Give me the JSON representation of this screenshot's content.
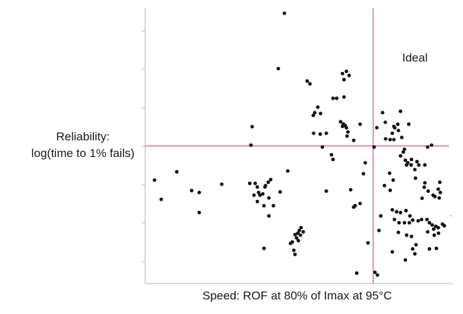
{
  "chart_data": {
    "type": "scatter",
    "title": "",
    "xlabel": "Speed: ROF at 80% of Imax at 95°C",
    "ylabel_lines": [
      "Reliability:",
      "log(time to 1% fails)"
    ],
    "annotation": "Ideal",
    "xlim": [
      0,
      100
    ],
    "ylim": [
      0,
      100
    ],
    "reference_lines": {
      "x": 75,
      "y": 50
    },
    "reference_line_color": "#e0506e",
    "point_color": "#111111",
    "grid": false,
    "points": [
      {
        "x": 45.8,
        "y": 98.2
      },
      {
        "x": 43.8,
        "y": 78.1
      },
      {
        "x": 53.3,
        "y": 73.6
      },
      {
        "x": 54.2,
        "y": 72.6
      },
      {
        "x": 66.2,
        "y": 77.1
      },
      {
        "x": 65.4,
        "y": 74.1
      },
      {
        "x": 64.9,
        "y": 76.3
      },
      {
        "x": 67.1,
        "y": 75.6
      },
      {
        "x": 61.8,
        "y": 67.3
      },
      {
        "x": 63.0,
        "y": 67.3
      },
      {
        "x": 65.4,
        "y": 67.8
      },
      {
        "x": 56.8,
        "y": 64.1
      },
      {
        "x": 57.7,
        "y": 61.8
      },
      {
        "x": 55.3,
        "y": 61.1
      },
      {
        "x": 55.8,
        "y": 62.1
      },
      {
        "x": 64.3,
        "y": 58.8
      },
      {
        "x": 65.2,
        "y": 58.0
      },
      {
        "x": 65.8,
        "y": 57.4
      },
      {
        "x": 64.9,
        "y": 57.1
      },
      {
        "x": 66.2,
        "y": 56.6
      },
      {
        "x": 66.7,
        "y": 55.1
      },
      {
        "x": 66.4,
        "y": 53.6
      },
      {
        "x": 70.7,
        "y": 57.9
      },
      {
        "x": 57.6,
        "y": 54.3
      },
      {
        "x": 55.4,
        "y": 54.6
      },
      {
        "x": 59.6,
        "y": 54.6
      },
      {
        "x": 68.6,
        "y": 52.0
      },
      {
        "x": 58.3,
        "y": 49.6
      },
      {
        "x": 61.3,
        "y": 46.8
      },
      {
        "x": 61.8,
        "y": 45.1
      },
      {
        "x": 72.4,
        "y": 43.9
      },
      {
        "x": 71.8,
        "y": 39.9
      },
      {
        "x": 35.2,
        "y": 57.0
      },
      {
        "x": 34.8,
        "y": 50.3
      },
      {
        "x": 75.3,
        "y": 49.6
      },
      {
        "x": 78.1,
        "y": 62.1
      },
      {
        "x": 84.0,
        "y": 62.6
      },
      {
        "x": 79.0,
        "y": 58.6
      },
      {
        "x": 82.1,
        "y": 56.6
      },
      {
        "x": 76.2,
        "y": 56.6
      },
      {
        "x": 83.1,
        "y": 57.9
      },
      {
        "x": 81.8,
        "y": 57.1
      },
      {
        "x": 86.7,
        "y": 57.9
      },
      {
        "x": 83.3,
        "y": 55.6
      },
      {
        "x": 81.3,
        "y": 54.6
      },
      {
        "x": 84.4,
        "y": 53.1
      },
      {
        "x": 79.1,
        "y": 52.6
      },
      {
        "x": 80.6,
        "y": 52.3
      },
      {
        "x": 81.8,
        "y": 52.3
      },
      {
        "x": 85.3,
        "y": 48.8
      },
      {
        "x": 84.9,
        "y": 47.8
      },
      {
        "x": 84.0,
        "y": 46.4
      },
      {
        "x": 85.6,
        "y": 44.8
      },
      {
        "x": 87.6,
        "y": 45.1
      },
      {
        "x": 86.0,
        "y": 43.1
      },
      {
        "x": 86.4,
        "y": 43.9
      },
      {
        "x": 87.5,
        "y": 43.1
      },
      {
        "x": 89.4,
        "y": 44.3
      },
      {
        "x": 90.0,
        "y": 43.1
      },
      {
        "x": 92.0,
        "y": 43.1
      },
      {
        "x": 92.9,
        "y": 49.6
      },
      {
        "x": 94.2,
        "y": 50.3
      },
      {
        "x": 88.7,
        "y": 41.4
      },
      {
        "x": 92.0,
        "y": 36.6
      },
      {
        "x": 91.8,
        "y": 35.0
      },
      {
        "x": 93.1,
        "y": 33.6
      },
      {
        "x": 91.1,
        "y": 31.0
      },
      {
        "x": 94.7,
        "y": 32.1
      },
      {
        "x": 95.3,
        "y": 31.6
      },
      {
        "x": 96.4,
        "y": 34.3
      },
      {
        "x": 96.9,
        "y": 36.8
      },
      {
        "x": 97.1,
        "y": 33.1
      },
      {
        "x": 96.7,
        "y": 31.1
      },
      {
        "x": 88.9,
        "y": 38.3
      },
      {
        "x": 81.3,
        "y": 26.8
      },
      {
        "x": 82.7,
        "y": 26.1
      },
      {
        "x": 84.0,
        "y": 25.8
      },
      {
        "x": 85.8,
        "y": 26.5
      },
      {
        "x": 87.1,
        "y": 24.6
      },
      {
        "x": 82.0,
        "y": 23.3
      },
      {
        "x": 83.5,
        "y": 22.1
      },
      {
        "x": 85.3,
        "y": 22.1
      },
      {
        "x": 86.9,
        "y": 22.1
      },
      {
        "x": 88.0,
        "y": 23.1
      },
      {
        "x": 89.8,
        "y": 22.8
      },
      {
        "x": 90.9,
        "y": 23.3
      },
      {
        "x": 92.7,
        "y": 23.3
      },
      {
        "x": 93.5,
        "y": 22.1
      },
      {
        "x": 94.4,
        "y": 21.3
      },
      {
        "x": 95.6,
        "y": 20.8
      },
      {
        "x": 94.9,
        "y": 19.8
      },
      {
        "x": 96.4,
        "y": 20.3
      },
      {
        "x": 97.8,
        "y": 21.6
      },
      {
        "x": 98.4,
        "y": 21.0
      },
      {
        "x": 96.5,
        "y": 18.3
      },
      {
        "x": 95.1,
        "y": 17.6
      },
      {
        "x": 92.9,
        "y": 18.8
      },
      {
        "x": 83.3,
        "y": 18.6
      },
      {
        "x": 86.0,
        "y": 17.6
      },
      {
        "x": 87.6,
        "y": 17.1
      },
      {
        "x": 89.1,
        "y": 14.1
      },
      {
        "x": 88.0,
        "y": 12.6
      },
      {
        "x": 93.5,
        "y": 12.6
      },
      {
        "x": 95.8,
        "y": 12.8
      },
      {
        "x": 81.3,
        "y": 11.5
      },
      {
        "x": 88.7,
        "y": 10.8
      },
      {
        "x": 85.6,
        "y": 8.6
      },
      {
        "x": 76.9,
        "y": 19.3
      },
      {
        "x": 73.3,
        "y": 14.8
      },
      {
        "x": 75.6,
        "y": 4.1
      },
      {
        "x": 76.4,
        "y": 3.1
      },
      {
        "x": 69.6,
        "y": 3.8
      },
      {
        "x": 77.5,
        "y": 24.6
      },
      {
        "x": 80.4,
        "y": 40.1
      },
      {
        "x": 81.6,
        "y": 37.6
      },
      {
        "x": 78.7,
        "y": 35.6
      },
      {
        "x": 80.6,
        "y": 33.9
      },
      {
        "x": 69.1,
        "y": 28.3
      },
      {
        "x": 70.7,
        "y": 29.1
      },
      {
        "x": 67.6,
        "y": 34.1
      },
      {
        "x": 25.2,
        "y": 36.1
      },
      {
        "x": 34.4,
        "y": 36.4
      },
      {
        "x": 36.2,
        "y": 36.4
      },
      {
        "x": 35.8,
        "y": 32.1
      },
      {
        "x": 37.8,
        "y": 32.1
      },
      {
        "x": 36.9,
        "y": 35.1
      },
      {
        "x": 37.3,
        "y": 33.1
      },
      {
        "x": 36.9,
        "y": 29.8
      },
      {
        "x": 38.7,
        "y": 32.6
      },
      {
        "x": 39.4,
        "y": 35.1
      },
      {
        "x": 39.1,
        "y": 28.3
      },
      {
        "x": 40.7,
        "y": 31.1
      },
      {
        "x": 42.2,
        "y": 28.3
      },
      {
        "x": 44.4,
        "y": 33.3
      },
      {
        "x": 41.3,
        "y": 37.8
      },
      {
        "x": 39.6,
        "y": 35.6
      },
      {
        "x": 40.5,
        "y": 36.8
      },
      {
        "x": 46.9,
        "y": 40.9
      },
      {
        "x": 3.1,
        "y": 37.6
      },
      {
        "x": 5.3,
        "y": 30.6
      },
      {
        "x": 10.4,
        "y": 40.6
      },
      {
        "x": 15.3,
        "y": 33.8
      },
      {
        "x": 17.8,
        "y": 33.1
      },
      {
        "x": 17.8,
        "y": 25.8
      },
      {
        "x": 40.7,
        "y": 24.6
      },
      {
        "x": 50.7,
        "y": 19.3
      },
      {
        "x": 51.3,
        "y": 20.3
      },
      {
        "x": 52.0,
        "y": 18.8
      },
      {
        "x": 50.2,
        "y": 18.3
      },
      {
        "x": 49.3,
        "y": 17.8
      },
      {
        "x": 51.1,
        "y": 17.6
      },
      {
        "x": 49.8,
        "y": 16.6
      },
      {
        "x": 50.4,
        "y": 15.6
      },
      {
        "x": 48.4,
        "y": 15.1
      },
      {
        "x": 47.8,
        "y": 14.6
      },
      {
        "x": 48.9,
        "y": 12.1
      },
      {
        "x": 49.3,
        "y": 10.6
      },
      {
        "x": 39.1,
        "y": 12.8
      },
      {
        "x": 59.6,
        "y": 33.6
      },
      {
        "x": 68.6,
        "y": 27.8
      }
    ]
  }
}
